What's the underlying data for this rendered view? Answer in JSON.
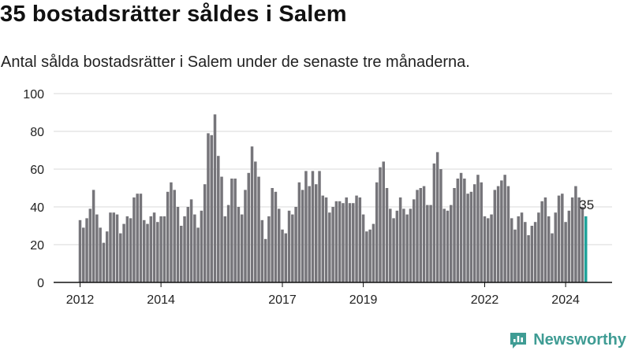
{
  "header": {
    "title": "35 bostadsrätter såldes i Salem",
    "subtitle": "Antal sålda bostadsrätter i Salem under de senaste tre månaderna."
  },
  "brand": {
    "name": "Newsworthy",
    "icon": "newsworthy-logo-icon"
  },
  "colors": {
    "bar": "#76757a",
    "highlight": "#20a39b",
    "grid": "#d9d9d9",
    "axis": "#111111",
    "brand": "#3f9c94"
  },
  "chart_data": {
    "type": "bar",
    "title": "35 bostadsrätter såldes i Salem",
    "xlabel": "",
    "ylabel": "",
    "ylim": [
      0,
      100
    ],
    "yticks": [
      0,
      20,
      40,
      60,
      80,
      100
    ],
    "xticks": [
      {
        "label": "2012",
        "index": 0
      },
      {
        "label": "2014",
        "index": 24
      },
      {
        "label": "2017",
        "index": 60
      },
      {
        "label": "2019",
        "index": 84
      },
      {
        "label": "2022",
        "index": 120
      },
      {
        "label": "2024",
        "index": 144
      }
    ],
    "highlight_index": 150,
    "highlight_label": "35",
    "values": [
      33,
      29,
      34,
      39,
      49,
      36,
      29,
      21,
      27,
      37,
      37,
      36,
      26,
      31,
      35,
      34,
      45,
      47,
      47,
      33,
      31,
      35,
      37,
      32,
      35,
      35,
      48,
      53,
      49,
      40,
      30,
      35,
      40,
      44,
      36,
      29,
      38,
      52,
      79,
      78,
      89,
      67,
      56,
      35,
      41,
      55,
      55,
      40,
      36,
      49,
      58,
      72,
      64,
      56,
      33,
      23,
      35,
      50,
      48,
      39,
      28,
      26,
      38,
      36,
      40,
      53,
      49,
      59,
      51,
      59,
      52,
      59,
      46,
      45,
      37,
      40,
      43,
      43,
      42,
      45,
      42,
      42,
      46,
      45,
      36,
      27,
      28,
      31,
      53,
      61,
      64,
      50,
      39,
      34,
      38,
      45,
      39,
      36,
      39,
      44,
      49,
      50,
      51,
      41,
      41,
      63,
      69,
      60,
      39,
      38,
      41,
      50,
      55,
      58,
      55,
      47,
      48,
      52,
      57,
      53,
      35,
      34,
      36,
      49,
      51,
      54,
      57,
      51,
      34,
      28,
      35,
      37,
      32,
      25,
      30,
      32,
      37,
      43,
      45,
      35,
      26,
      37,
      46,
      47,
      32,
      38,
      45,
      51,
      45,
      40,
      35
    ]
  }
}
